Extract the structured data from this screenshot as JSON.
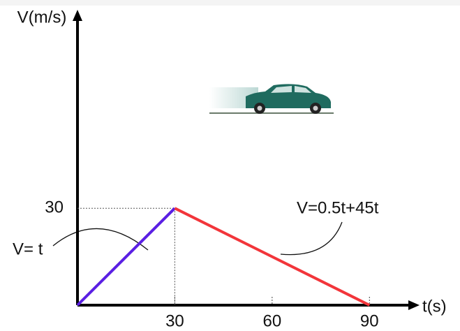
{
  "chart_data": {
    "type": "line",
    "y_label": "V(m/s)",
    "x_label": "t(s)",
    "x": [
      0,
      30,
      90
    ],
    "series": [
      {
        "color": "#5a1fe3",
        "values": [
          0,
          30,
          null
        ]
      },
      {
        "color": "#f2353a",
        "values": [
          null,
          30,
          0
        ]
      }
    ],
    "xlim": [
      0,
      105
    ],
    "ylim": [
      0,
      91
    ],
    "xticks": [
      30,
      60,
      90
    ],
    "yticks": [
      30
    ],
    "annotations": [
      "V= t",
      "V=0.5t+45t"
    ]
  }
}
